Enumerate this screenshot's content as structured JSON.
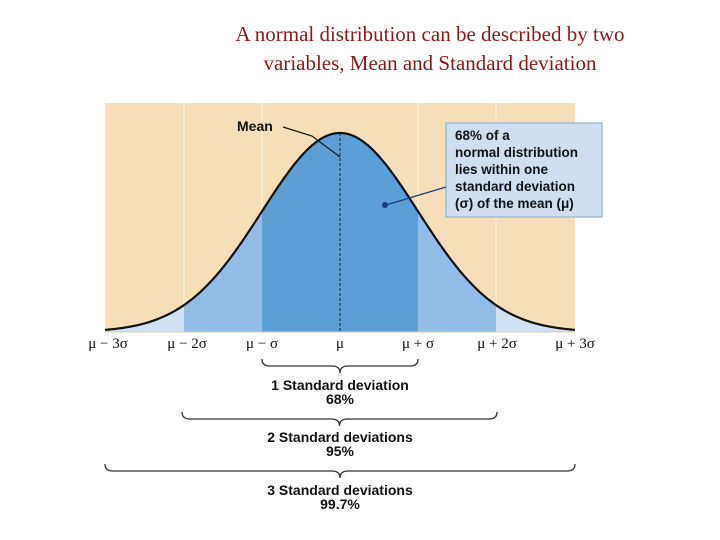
{
  "title": {
    "line1": "A normal distribution can be described by two",
    "line2": "variables, Mean and Standard deviation"
  },
  "diagram": {
    "mean_label": "Mean",
    "callout": [
      "68% of a",
      "normal distribution",
      "lies within one",
      "standard deviation",
      "(σ) of the mean (μ)"
    ],
    "axis_ticks": [
      "μ − 3σ",
      "μ − 2σ",
      "μ − σ",
      "μ",
      "μ + σ",
      "μ + 2σ",
      "μ + 3σ"
    ],
    "brackets": [
      {
        "label": "1 Standard deviation",
        "percent": "68%"
      },
      {
        "label": "2 Standard deviations",
        "percent": "95%"
      },
      {
        "label": "3 Standard deviations",
        "percent": "99.7%"
      }
    ],
    "colors": {
      "background": "#f6dfb8",
      "band_1sd": "#5b9fd6",
      "band_2sd": "#93bde6",
      "band_3sd": "#cfe1f3",
      "title": "#8b1a1a",
      "callout_bg": "#cfdff1"
    }
  }
}
